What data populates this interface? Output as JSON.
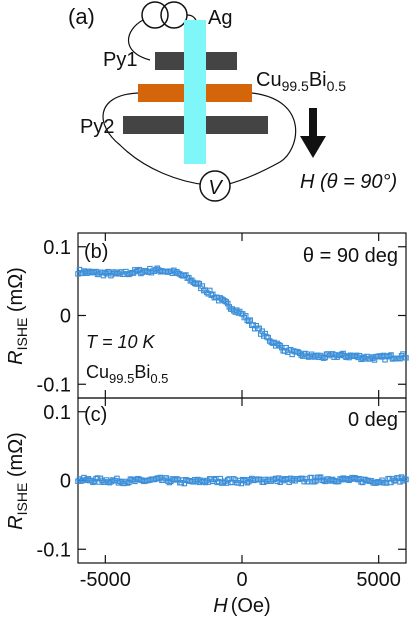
{
  "schematic": {
    "panel_label": "(a)",
    "labels": {
      "ag": "Ag",
      "py1": "Py1",
      "cubi_base": "Cu",
      "cubi_sub1": "99.5",
      "cubi_mid": "Bi",
      "cubi_sub2": "0.5",
      "py2": "Py2",
      "voltmeter": "V",
      "field": "H (θ = 90°)"
    },
    "colors": {
      "ag": "#7ff6f8",
      "py": "#444444",
      "cubi": "#d4650a"
    },
    "icons": [
      "current-source-icon",
      "voltmeter-icon",
      "field-arrow-icon"
    ]
  },
  "chart_data": [
    {
      "type": "scatter",
      "panel_label": "(b)",
      "annotation": "θ = 90 deg",
      "title": "",
      "xlabel": "H (Oe)",
      "ylabel_main": "R",
      "ylabel_sub": "ISHE",
      "ylabel_unit": " (mΩ)",
      "xlim": [
        -6000,
        6000
      ],
      "ylim": [
        -0.12,
        0.12
      ],
      "y_ticks": [
        0.1,
        0,
        -0.1
      ],
      "y_tick_labels": [
        "0.1",
        "0",
        "-0.1"
      ],
      "inset_text_T": "T = 10 K",
      "inset_text_sample_base": "Cu",
      "inset_text_sample_sub1": "99.5",
      "inset_text_sample_mid": "Bi",
      "inset_text_sample_sub2": "0.5",
      "marker_color": "#3c8fd8",
      "series": [
        {
          "x": [
            -6000,
            -5500,
            -5000,
            -4500,
            -4000,
            -3500,
            -3000,
            -2500,
            -2000,
            -1500,
            -1000,
            -500,
            0,
            500,
            1000,
            1500,
            2000,
            2500,
            3000,
            3500,
            4000,
            4500,
            5000,
            5500,
            6000
          ],
          "y": [
            0.064,
            0.062,
            0.061,
            0.06,
            0.063,
            0.065,
            0.066,
            0.063,
            0.055,
            0.042,
            0.028,
            0.015,
            0.002,
            -0.017,
            -0.035,
            -0.048,
            -0.056,
            -0.059,
            -0.06,
            -0.058,
            -0.059,
            -0.061,
            -0.062,
            -0.06,
            -0.059
          ]
        }
      ]
    },
    {
      "type": "scatter",
      "panel_label": "(c)",
      "annotation": "0 deg",
      "title": "",
      "xlabel": "H (Oe)",
      "ylabel_main": "R",
      "ylabel_sub": "ISHE",
      "ylabel_unit": " (mΩ)",
      "xlim": [
        -6000,
        6000
      ],
      "ylim": [
        -0.12,
        0.12
      ],
      "y_ticks": [
        0.1,
        0,
        -0.1
      ],
      "y_tick_labels": [
        "0.1",
        "0",
        "-0.1"
      ],
      "x_ticks": [
        -5000,
        0,
        5000
      ],
      "x_tick_labels": [
        "-5000",
        "0",
        "5000"
      ],
      "marker_color": "#3c8fd8",
      "series": [
        {
          "x": [
            -6000,
            -5000,
            -4000,
            -3000,
            -2000,
            -1000,
            0,
            1000,
            2000,
            3000,
            4000,
            5000,
            6000
          ],
          "y": [
            0.001,
            0.0,
            -0.001,
            0.001,
            -0.002,
            0.0,
            -0.001,
            0.001,
            0.0,
            0.002,
            0.001,
            -0.001,
            0.002
          ]
        }
      ]
    }
  ]
}
